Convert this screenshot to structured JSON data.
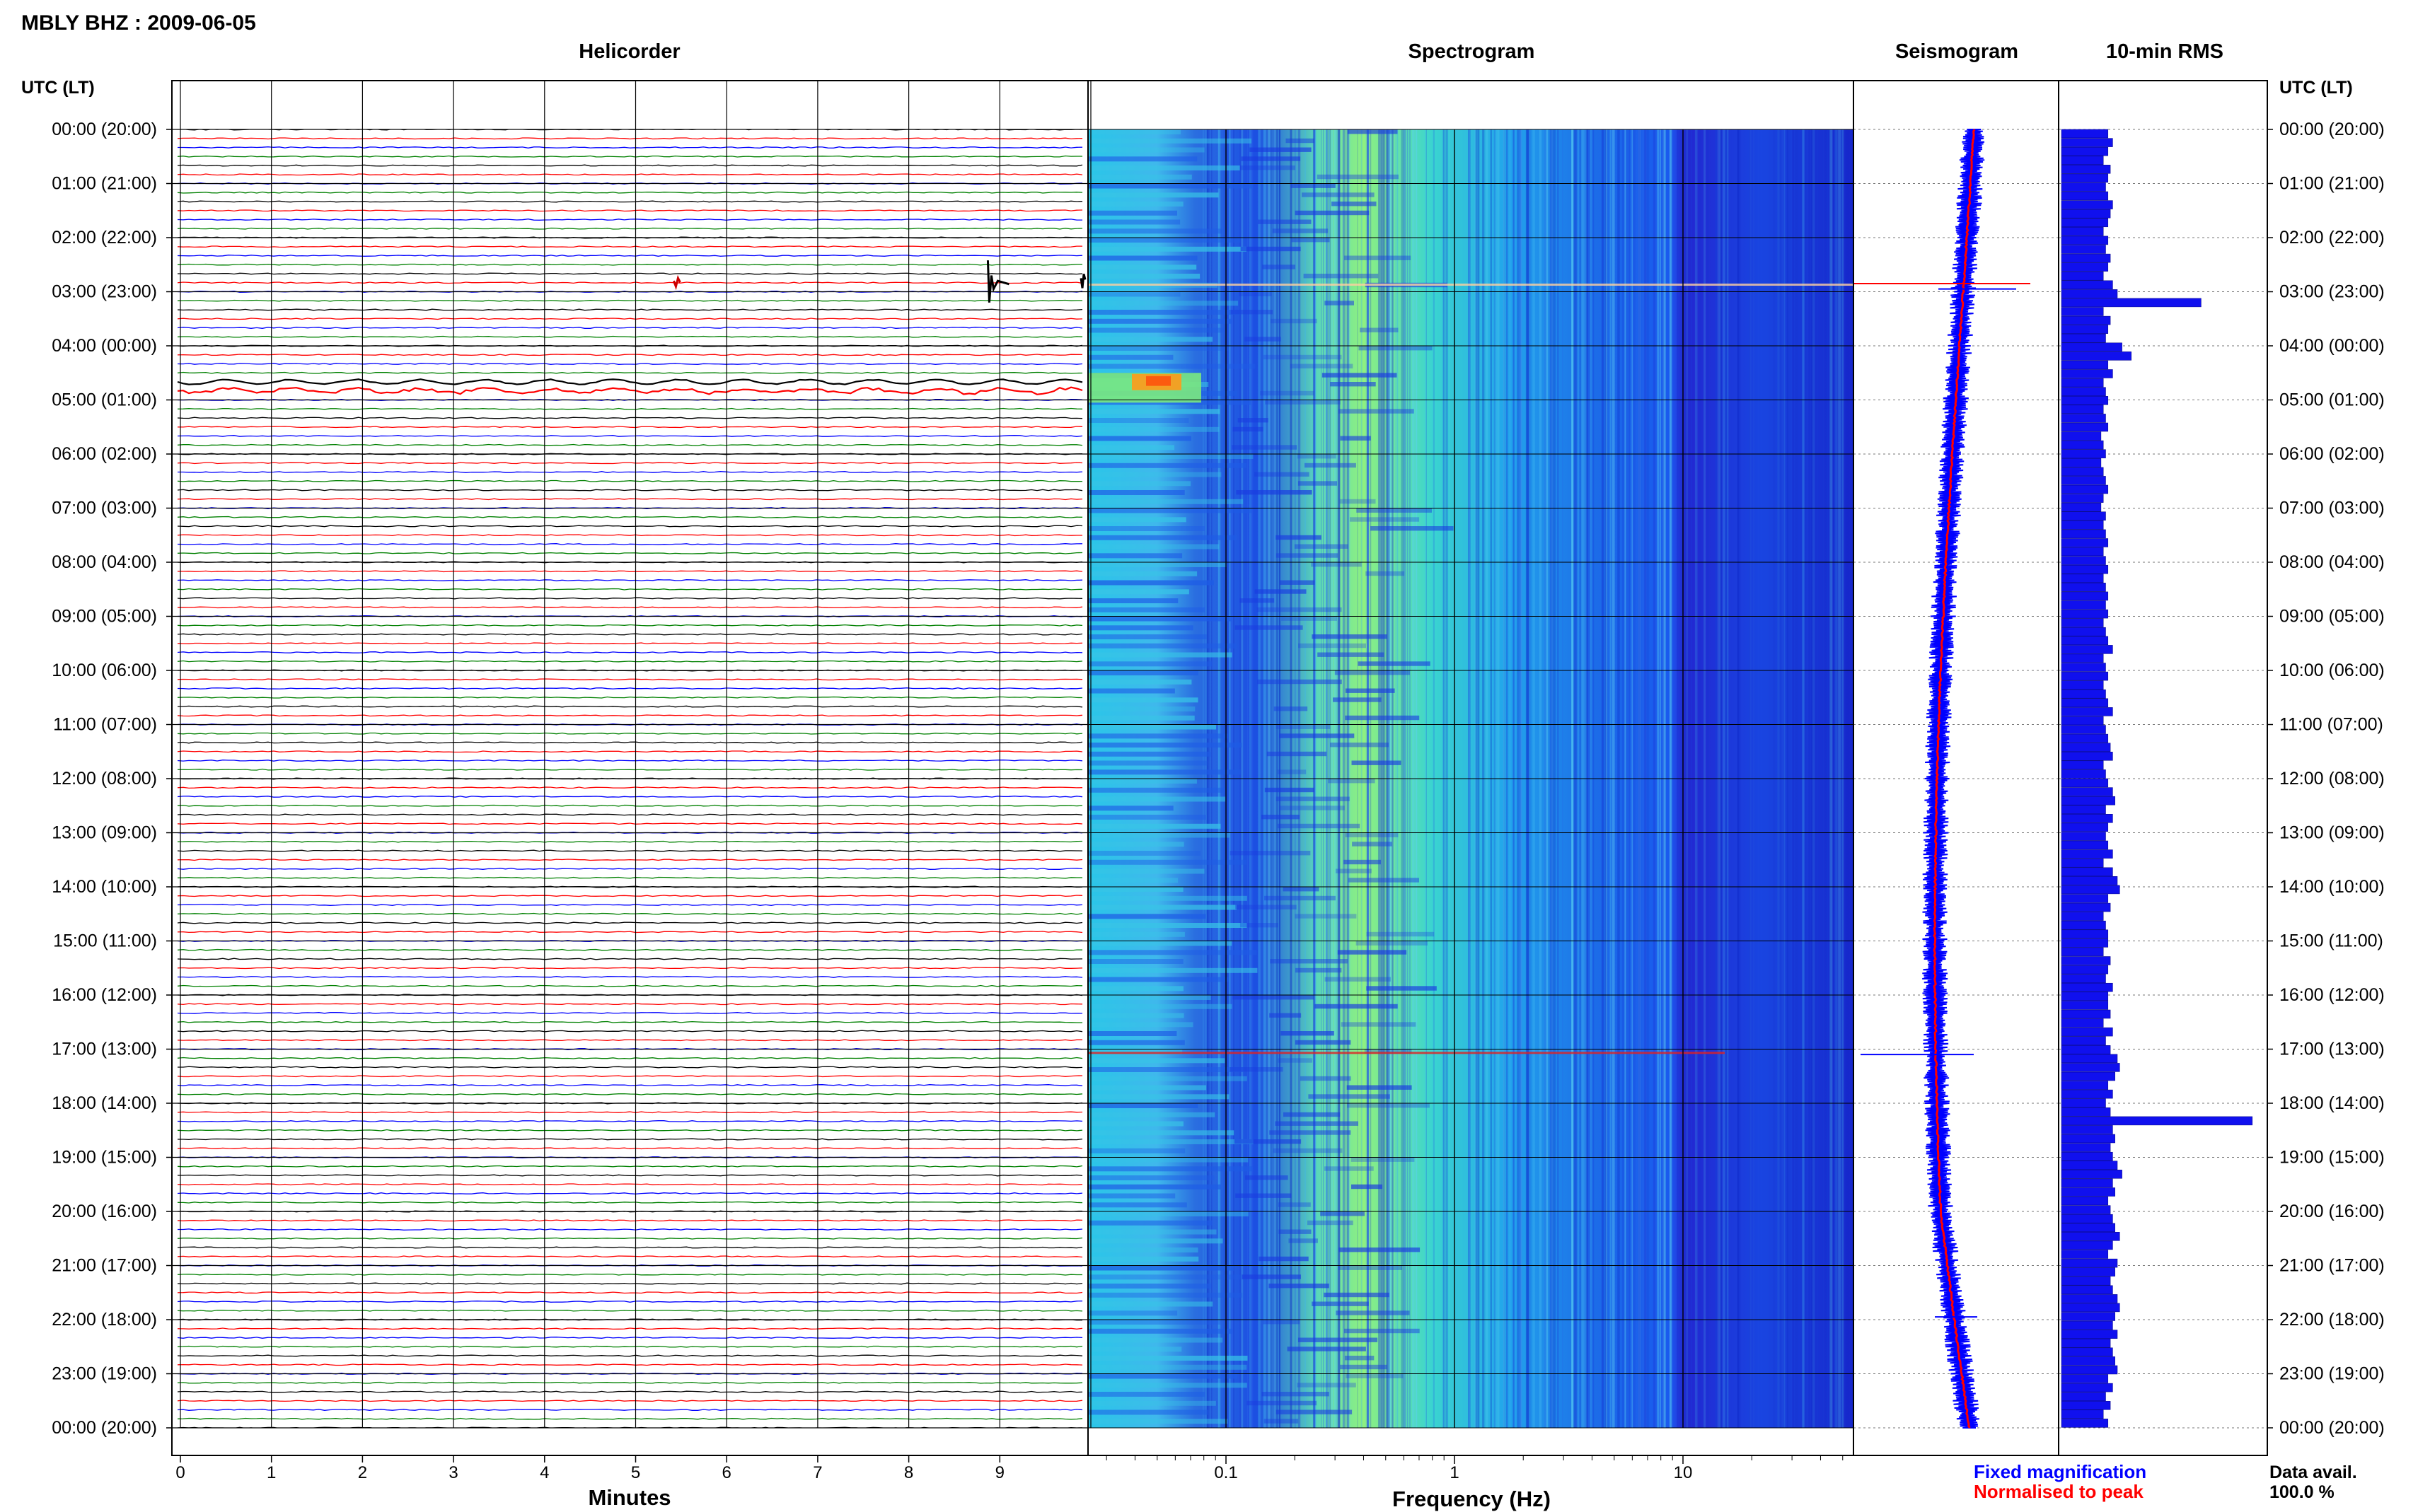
{
  "page_title": "MBLY BHZ : 2009-06-05",
  "panels": {
    "helicorder": "Helicorder",
    "spectrogram": "Spectrogram",
    "seismogram": "Seismogram",
    "rms": "10-min RMS"
  },
  "axis": {
    "utc_label": "UTC (LT)",
    "minutes_label": "Minutes",
    "frequency_label": "Frequency (Hz)"
  },
  "legend": {
    "fixed": "Fixed magnification",
    "normalised": "Normalised to peak",
    "fixed_color": "#0000ff",
    "normalised_color": "#ff0000"
  },
  "data_avail": {
    "label": "Data avail.",
    "value": "100.0 %"
  },
  "chart_data": {
    "type": "heatmap",
    "title": "MBLY BHZ : 2009-06-05",
    "time_labels": [
      "00:00 (20:00)",
      "01:00 (21:00)",
      "02:00 (22:00)",
      "03:00 (23:00)",
      "04:00 (00:00)",
      "05:00 (01:00)",
      "06:00 (02:00)",
      "07:00 (03:00)",
      "08:00 (04:00)",
      "09:00 (05:00)",
      "10:00 (06:00)",
      "11:00 (07:00)",
      "12:00 (08:00)",
      "13:00 (09:00)",
      "14:00 (10:00)",
      "15:00 (11:00)",
      "16:00 (12:00)",
      "17:00 (13:00)",
      "18:00 (14:00)",
      "19:00 (15:00)",
      "20:00 (16:00)",
      "21:00 (17:00)",
      "22:00 (18:00)",
      "23:00 (19:00)",
      "00:00 (20:00)"
    ],
    "minute_ticks": [
      "0",
      "1",
      "2",
      "3",
      "4",
      "5",
      "6",
      "7",
      "8",
      "9"
    ],
    "frequency_ticks": [
      "0.1",
      "1",
      "10"
    ],
    "frequency_range_hz": [
      0.025,
      50
    ],
    "frequency_scale": "log",
    "helicorder_colors": [
      "#000000",
      "#ff0000",
      "#0000ff",
      "#008000"
    ],
    "events": [
      {
        "time": "02:50",
        "description": "large transient"
      },
      {
        "time": "04:40",
        "description": "long-period oscillation"
      },
      {
        "time": "17:00",
        "description": "short transient"
      }
    ],
    "rms_series": {
      "name": "10-min RMS",
      "values": [
        20,
        22,
        20,
        18,
        21,
        20,
        19,
        20,
        22,
        21,
        20,
        18,
        20,
        19,
        21,
        20,
        18,
        22,
        24,
        60,
        18,
        21,
        20,
        19,
        26,
        30,
        20,
        22,
        18,
        19,
        20,
        18,
        19,
        20,
        17,
        18,
        19,
        17,
        18,
        19,
        20,
        18,
        17,
        19,
        18,
        19,
        20,
        18,
        19,
        20,
        18,
        19,
        20,
        19,
        20,
        18,
        19,
        20,
        22,
        18,
        19,
        20,
        18,
        19,
        20,
        22,
        18,
        19,
        20,
        21,
        22,
        18,
        19,
        20,
        22,
        23,
        19,
        22,
        20,
        19,
        20,
        22,
        18,
        22,
        24,
        25,
        20,
        21,
        18,
        19,
        20,
        20,
        18,
        21,
        20,
        19,
        22,
        20,
        20,
        21,
        18,
        22,
        19,
        21,
        24,
        25,
        23,
        20,
        22,
        19,
        21,
        82,
        22,
        23,
        21,
        22,
        24,
        26,
        22,
        23,
        20,
        21,
        22,
        23,
        25,
        22,
        20,
        24,
        23,
        21,
        22,
        24,
        25,
        23,
        22,
        24,
        21,
        22,
        23,
        24,
        20,
        22,
        19,
        21,
        18,
        20
      ]
    }
  }
}
